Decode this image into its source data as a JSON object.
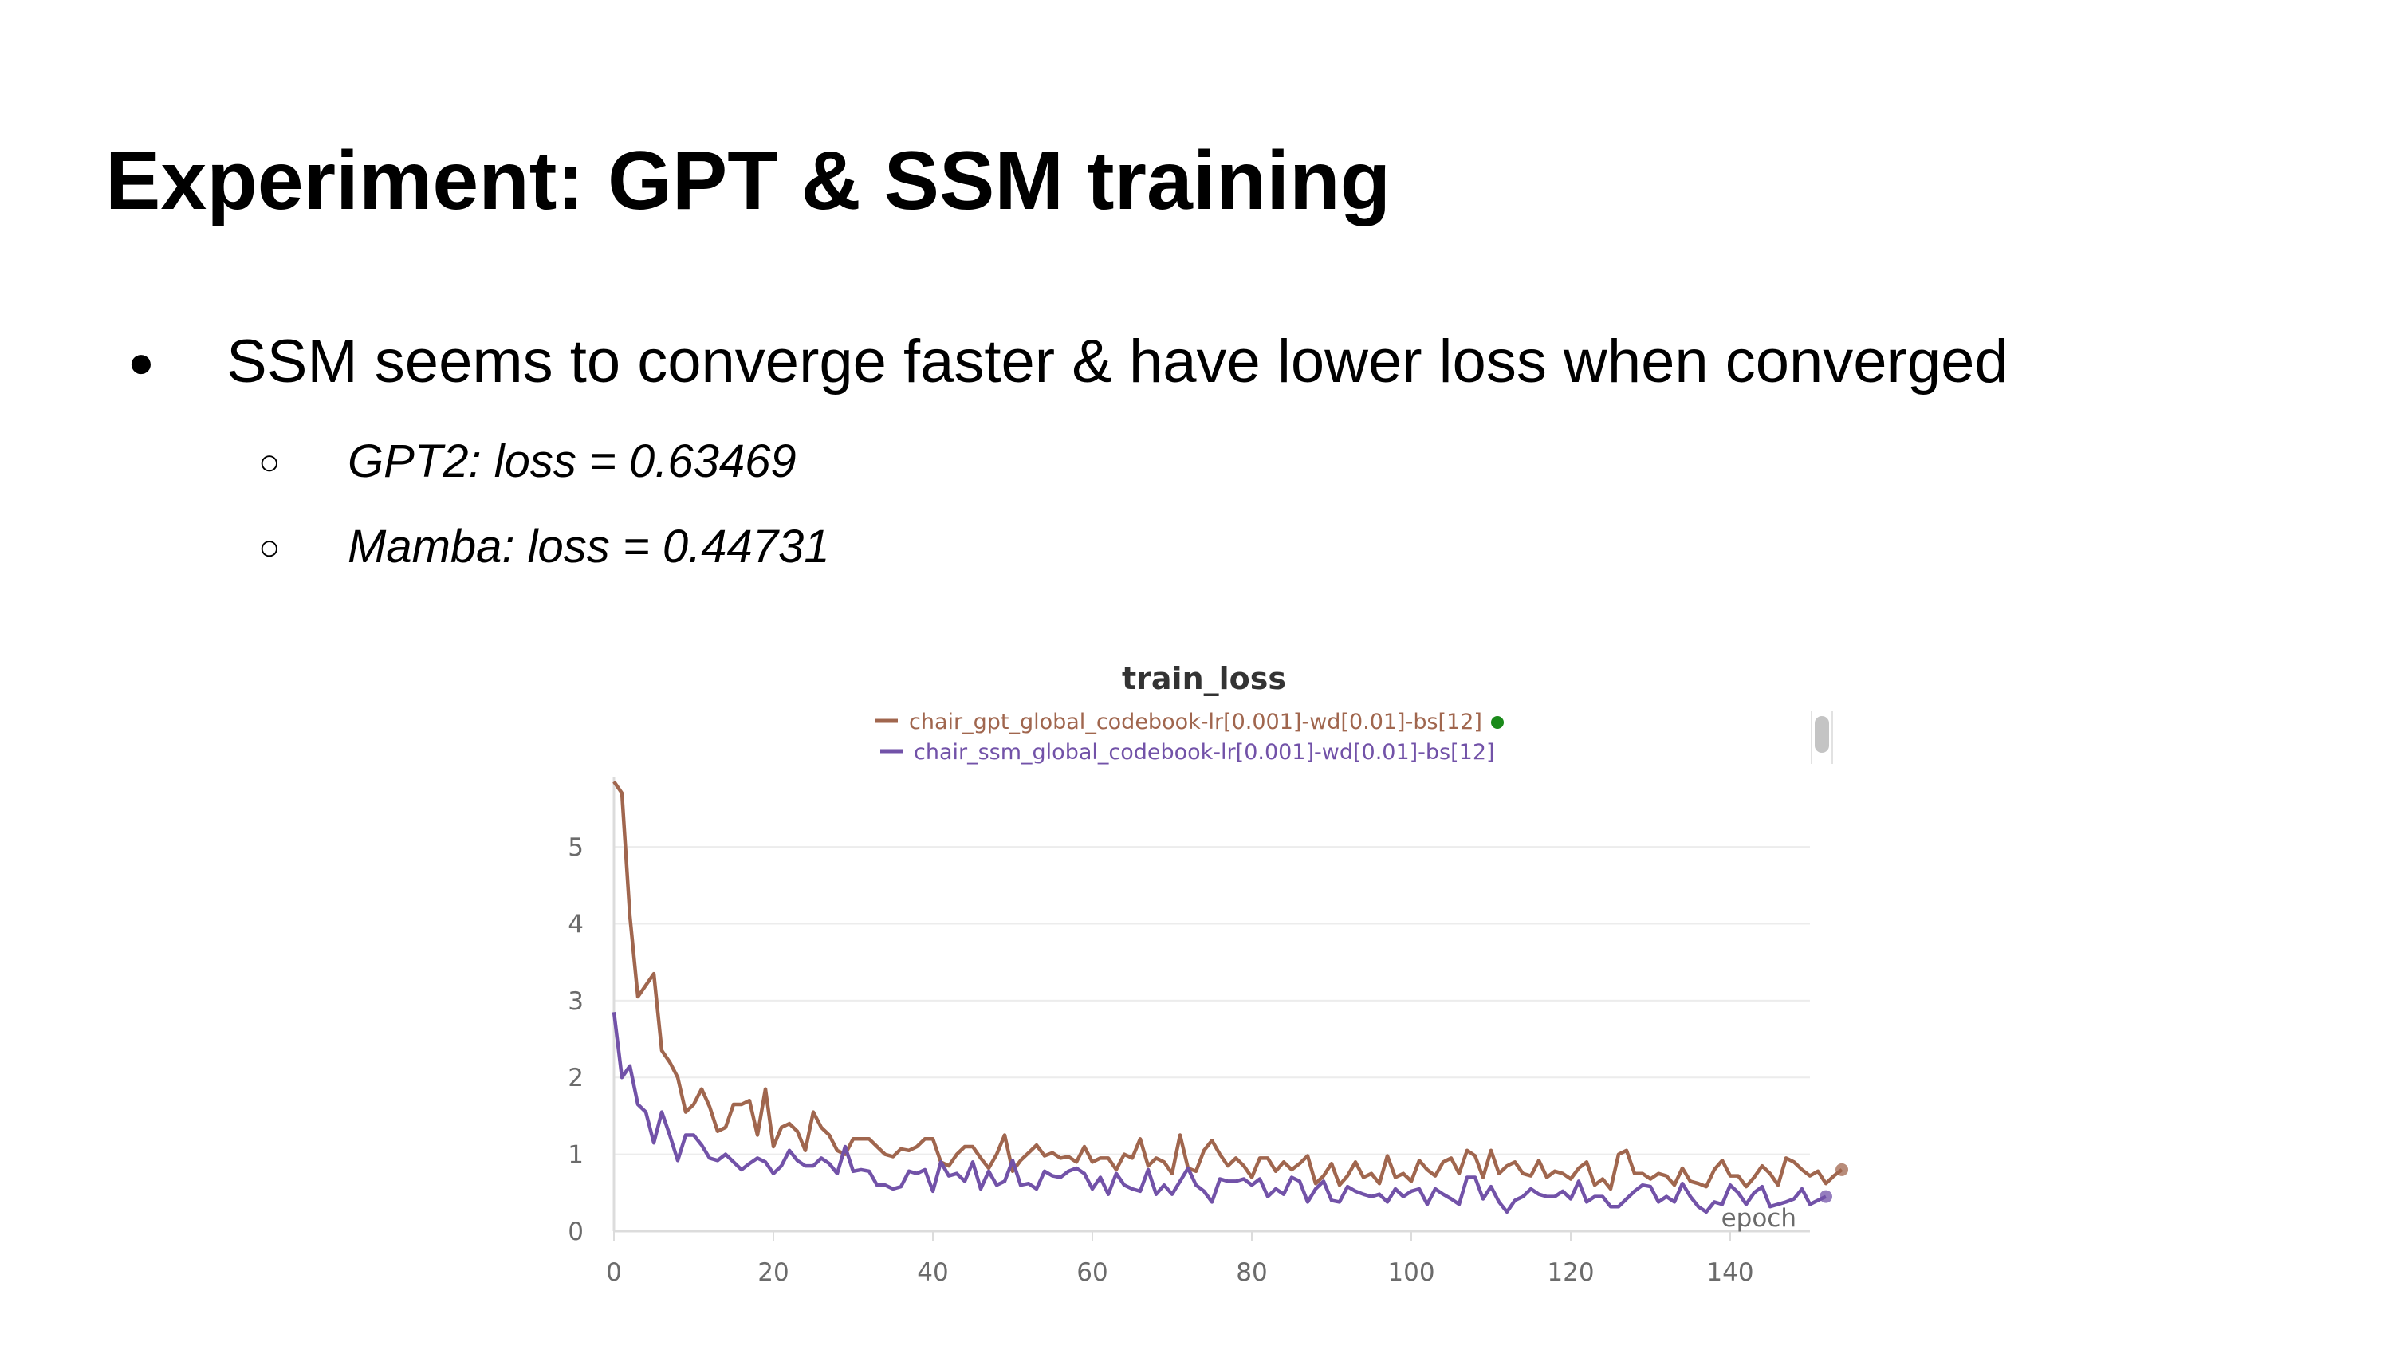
{
  "slide": {
    "title": "Experiment: GPT & SSM training",
    "bullet": "SSM seems to converge faster & have lower loss when converged",
    "sub_bullets": [
      "GPT2: loss = 0.63469",
      "Mamba: loss = 0.44731"
    ]
  },
  "chart_data": {
    "type": "line",
    "title": "train_loss",
    "xlabel": "epoch",
    "ylabel": "",
    "xlim": [
      0,
      150
    ],
    "ylim": [
      0,
      5.8
    ],
    "x_ticks": [
      0,
      20,
      40,
      60,
      80,
      100,
      120,
      140
    ],
    "y_ticks": [
      0,
      1,
      2,
      3,
      4,
      5
    ],
    "grid": true,
    "legend": "top-center",
    "series": [
      {
        "name": "chair_gpt_global_codebook-lr[0.001]-wd[0.01]-bs[12]",
        "color": "#a0664e",
        "values": [
          5.85,
          5.7,
          4.1,
          3.05,
          3.2,
          3.35,
          2.35,
          2.2,
          2.0,
          1.55,
          1.65,
          1.85,
          1.62,
          1.3,
          1.35,
          1.65,
          1.65,
          1.7,
          1.25,
          1.85,
          1.1,
          1.35,
          1.4,
          1.3,
          1.05,
          1.55,
          1.35,
          1.25,
          1.05,
          1.0,
          1.2,
          1.2,
          1.2,
          1.1,
          1.0,
          0.97,
          1.07,
          1.05,
          1.1,
          1.2,
          1.2,
          0.9,
          0.85,
          1.0,
          1.1,
          1.1,
          0.95,
          0.82,
          1.0,
          1.25,
          0.78,
          0.92,
          1.02,
          1.12,
          0.98,
          1.02,
          0.95,
          0.97,
          0.9,
          1.1,
          0.9,
          0.95,
          0.95,
          0.8,
          1.0,
          0.95,
          1.2,
          0.85,
          0.95,
          0.9,
          0.75,
          1.25,
          0.82,
          0.78,
          1.05,
          1.18,
          1.0,
          0.85,
          0.95,
          0.85,
          0.7,
          0.95,
          0.95,
          0.78,
          0.9,
          0.8,
          0.88,
          0.98,
          0.62,
          0.72,
          0.88,
          0.6,
          0.72,
          0.9,
          0.7,
          0.75,
          0.62,
          0.98,
          0.7,
          0.75,
          0.65,
          0.92,
          0.8,
          0.72,
          0.9,
          0.95,
          0.75,
          1.05,
          0.98,
          0.7,
          1.05,
          0.75,
          0.85,
          0.9,
          0.75,
          0.72,
          0.92,
          0.7,
          0.78,
          0.75,
          0.68,
          0.82,
          0.9,
          0.6,
          0.68,
          0.55,
          1.0,
          1.05,
          0.75,
          0.75,
          0.68,
          0.75,
          0.72,
          0.6,
          0.82,
          0.65,
          0.62,
          0.58,
          0.8,
          0.92,
          0.72,
          0.72,
          0.58,
          0.7,
          0.85,
          0.75,
          0.6,
          0.95,
          0.9,
          0.8,
          0.72,
          0.78,
          0.62,
          0.72,
          0.8
        ]
      },
      {
        "name": "chair_ssm_global_codebook-lr[0.001]-wd[0.01]-bs[12]",
        "color": "#7252a8",
        "values": [
          2.85,
          2.0,
          2.15,
          1.65,
          1.55,
          1.15,
          1.55,
          1.25,
          0.92,
          1.25,
          1.25,
          1.12,
          0.95,
          0.92,
          1.0,
          0.9,
          0.8,
          0.88,
          0.95,
          0.9,
          0.75,
          0.85,
          1.05,
          0.92,
          0.85,
          0.85,
          0.95,
          0.88,
          0.75,
          1.1,
          0.78,
          0.8,
          0.78,
          0.6,
          0.6,
          0.55,
          0.58,
          0.78,
          0.75,
          0.8,
          0.52,
          0.9,
          0.72,
          0.75,
          0.65,
          0.9,
          0.55,
          0.78,
          0.6,
          0.65,
          0.92,
          0.6,
          0.62,
          0.55,
          0.78,
          0.72,
          0.7,
          0.78,
          0.82,
          0.75,
          0.55,
          0.7,
          0.48,
          0.75,
          0.6,
          0.55,
          0.52,
          0.8,
          0.48,
          0.6,
          0.48,
          0.65,
          0.82,
          0.6,
          0.52,
          0.38,
          0.68,
          0.65,
          0.65,
          0.68,
          0.6,
          0.68,
          0.45,
          0.55,
          0.48,
          0.7,
          0.65,
          0.38,
          0.55,
          0.65,
          0.4,
          0.38,
          0.58,
          0.52,
          0.48,
          0.45,
          0.48,
          0.38,
          0.55,
          0.45,
          0.52,
          0.55,
          0.35,
          0.55,
          0.48,
          0.42,
          0.35,
          0.7,
          0.7,
          0.42,
          0.58,
          0.38,
          0.25,
          0.4,
          0.45,
          0.55,
          0.48,
          0.45,
          0.45,
          0.52,
          0.42,
          0.65,
          0.38,
          0.45,
          0.45,
          0.32,
          0.32,
          0.42,
          0.52,
          0.6,
          0.58,
          0.38,
          0.45,
          0.38,
          0.62,
          0.45,
          0.32,
          0.25,
          0.38,
          0.35,
          0.6,
          0.5,
          0.35,
          0.5,
          0.58,
          0.32,
          0.35,
          0.38,
          0.42,
          0.55,
          0.35,
          0.4,
          0.45
        ]
      }
    ]
  },
  "chart_ui": {
    "legend_dot_color": "#1a8a1a",
    "scrollbar_color": "#c4c4c4"
  }
}
